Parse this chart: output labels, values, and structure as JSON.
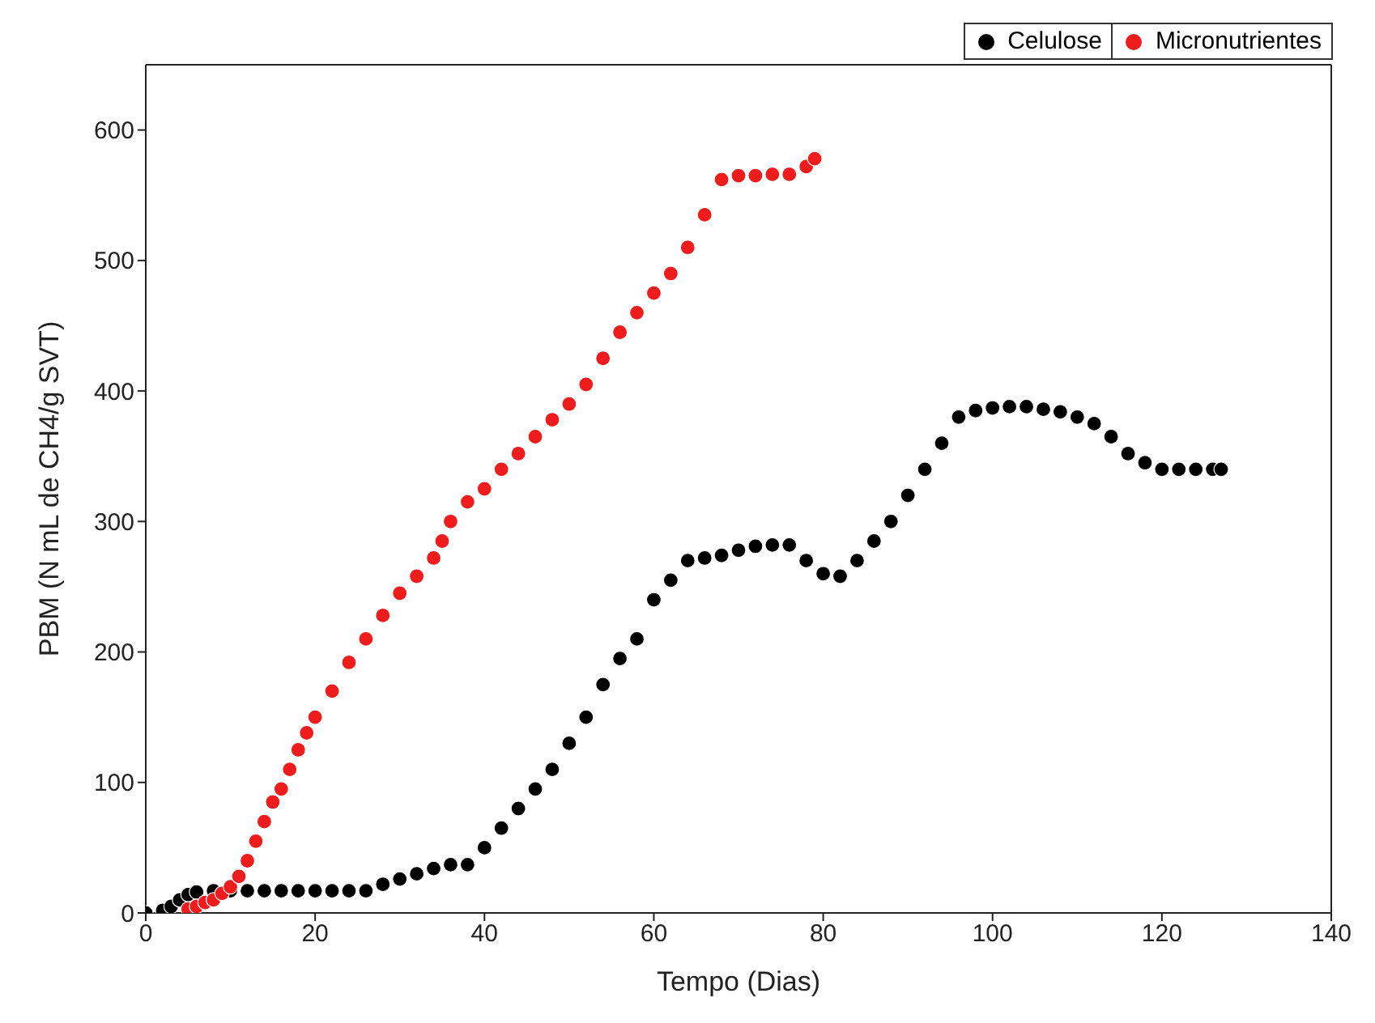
{
  "chart_data": {
    "type": "scatter",
    "xlabel": "Tempo (Dias)",
    "ylabel": "PBM (N mL de CH4/g SVT)",
    "xlim": [
      0,
      140
    ],
    "xticks": [
      0,
      20,
      40,
      60,
      80,
      100,
      120,
      140
    ],
    "ylim": [
      0,
      650
    ],
    "yticks": [
      0,
      100,
      200,
      300,
      400,
      500,
      600
    ],
    "legend": "top right",
    "marker": "circle",
    "series": [
      {
        "name": "Celulose",
        "color": "#000000",
        "x": [
          0,
          2,
          3,
          4,
          5,
          6,
          8,
          10,
          12,
          14,
          16,
          18,
          20,
          22,
          24,
          26,
          28,
          30,
          32,
          34,
          36,
          38,
          40,
          42,
          44,
          46,
          48,
          50,
          52,
          54,
          56,
          58,
          60,
          62,
          64,
          66,
          68,
          70,
          72,
          74,
          76,
          78,
          80,
          82,
          84,
          86,
          88,
          90,
          92,
          94,
          96,
          98,
          100,
          102,
          104,
          106,
          108,
          110,
          112,
          114,
          116,
          118,
          120,
          122,
          124,
          126,
          127
        ],
        "values": [
          0,
          2,
          5,
          10,
          14,
          16,
          17,
          17,
          17,
          17,
          17,
          17,
          17,
          17,
          17,
          17,
          22,
          26,
          30,
          34,
          37,
          37,
          50,
          65,
          80,
          95,
          110,
          130,
          150,
          175,
          195,
          210,
          240,
          255,
          270,
          272,
          274,
          278,
          281,
          282,
          282,
          270,
          260,
          258,
          270,
          285,
          300,
          320,
          340,
          360,
          380,
          385,
          387,
          388,
          388,
          386,
          384,
          380,
          375,
          365,
          352,
          345,
          340,
          340,
          340,
          340,
          340
        ]
      },
      {
        "name": "Micronutrientes",
        "color": "#ee1c1c",
        "x": [
          5,
          6,
          7,
          8,
          9,
          10,
          11,
          12,
          13,
          14,
          15,
          16,
          17,
          18,
          19,
          20,
          22,
          24,
          26,
          28,
          30,
          32,
          34,
          35,
          36,
          38,
          40,
          42,
          44,
          46,
          48,
          50,
          52,
          54,
          56,
          58,
          60,
          62,
          64,
          66,
          68,
          70,
          72,
          74,
          76,
          78,
          79
        ],
        "values": [
          3,
          5,
          8,
          10,
          15,
          20,
          28,
          40,
          55,
          70,
          85,
          95,
          110,
          125,
          138,
          150,
          170,
          192,
          210,
          228,
          245,
          258,
          272,
          285,
          300,
          315,
          325,
          340,
          352,
          365,
          378,
          390,
          405,
          425,
          445,
          460,
          475,
          490,
          510,
          535,
          562,
          565,
          565,
          566,
          566,
          572,
          578
        ]
      }
    ]
  }
}
